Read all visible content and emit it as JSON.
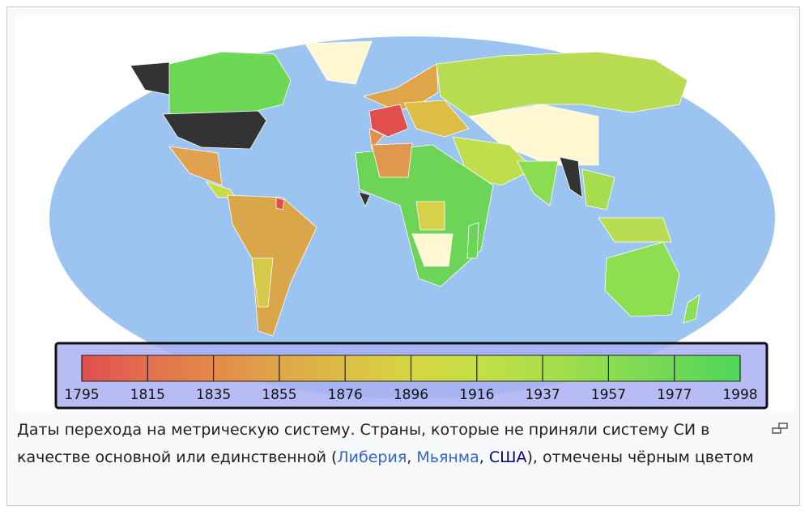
{
  "legend": {
    "ticks": [
      1795,
      1815,
      1835,
      1855,
      1876,
      1896,
      1916,
      1937,
      1957,
      1977,
      1998
    ],
    "colors": [
      "#e04e4e",
      "#e3704c",
      "#e38a4a",
      "#e0a548",
      "#dcbe44",
      "#d6d642",
      "#c6de46",
      "#aade4a",
      "#8cdc50",
      "#6ed856",
      "#50d65a"
    ]
  },
  "caption": {
    "segments": [
      "Даты перехода на метрическую систему. Страны, которые не приняли систему СИ в качестве основной или единственной (",
      "Либерия",
      ", ",
      "Мьянма",
      ", ",
      "США",
      "), отмечены чёрным цветом"
    ]
  }
}
